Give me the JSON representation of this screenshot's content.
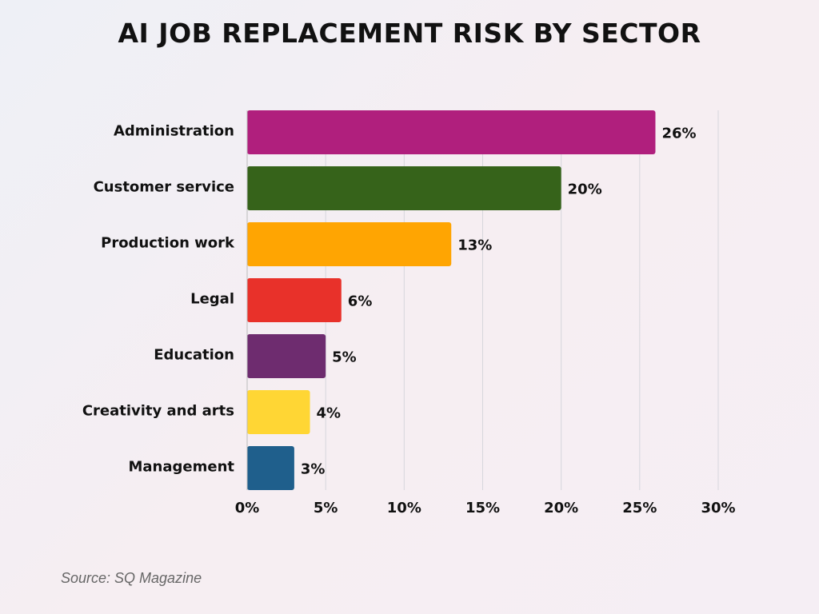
{
  "chart_data": {
    "type": "bar",
    "orientation": "horizontal",
    "title": "AI JOB REPLACEMENT RISK BY SECTOR",
    "categories": [
      "Administration",
      "Customer service",
      "Production work",
      "Legal",
      "Education",
      "Creativity and arts",
      "Management"
    ],
    "values": [
      26,
      20,
      13,
      6,
      5,
      4,
      3
    ],
    "data_labels": [
      "26%",
      "20%",
      "13%",
      "6%",
      "5%",
      "4%",
      "3%"
    ],
    "colors": [
      "#B01F7D",
      "#36631A",
      "#FFA502",
      "#E8312A",
      "#6E2C6F",
      "#FFD634",
      "#1F5F8C"
    ],
    "xlim": [
      0,
      30
    ],
    "xticks": [
      0,
      5,
      10,
      15,
      20,
      25,
      30
    ],
    "xtick_labels": [
      "0%",
      "5%",
      "10%",
      "15%",
      "20%",
      "25%",
      "30%"
    ],
    "grid": "vertical",
    "xlabel": "",
    "ylabel": ""
  },
  "source": "Source: SQ Magazine"
}
